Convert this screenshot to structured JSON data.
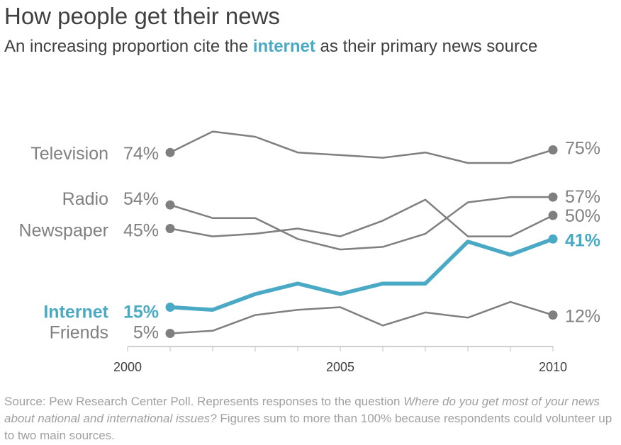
{
  "title": "How people get their news",
  "subtitle": {
    "before": "An increasing proportion cite the ",
    "highlight": "internet",
    "after": " as their primary news source"
  },
  "colors": {
    "accent": "#4aaac6",
    "series": "#7f7f7f",
    "axis": "#bfbfbf",
    "text": "#404040",
    "label": "#808080",
    "source": "#a0a0a0"
  },
  "chart_data": {
    "type": "line",
    "x": [
      2001,
      2002,
      2003,
      2004,
      2005,
      2006,
      2007,
      2008,
      2009,
      2010
    ],
    "xticks": [
      2000,
      2005,
      2010
    ],
    "xlim": [
      2000,
      2010
    ],
    "ylim": [
      0,
      100
    ],
    "grid": false,
    "series": [
      {
        "name": "Television",
        "start_label": "74%",
        "end_label": "75%",
        "highlight": false,
        "values": [
          74,
          82,
          80,
          74,
          73,
          72,
          74,
          70,
          70,
          75
        ]
      },
      {
        "name": "Radio",
        "start_label": "54%",
        "end_label": "57%",
        "highlight": false,
        "values": [
          54,
          49,
          49,
          41,
          37,
          38,
          43,
          55,
          57,
          57
        ]
      },
      {
        "name": "Newspaper",
        "start_label": "45%",
        "end_label": "50%",
        "highlight": false,
        "values": [
          45,
          42,
          43,
          45,
          42,
          48,
          56,
          42,
          42,
          50
        ]
      },
      {
        "name": "Internet",
        "start_label": "15%",
        "end_label": "41%",
        "highlight": true,
        "values": [
          15,
          14,
          20,
          24,
          20,
          24,
          24,
          40,
          35,
          41
        ]
      },
      {
        "name": "Friends",
        "start_label": "5%",
        "end_label": "12%",
        "highlight": false,
        "values": [
          5,
          6,
          12,
          14,
          15,
          8,
          13,
          11,
          17,
          12
        ]
      }
    ]
  },
  "source": {
    "before": "Source: Pew Research Center Poll. Represents responses to the question ",
    "question": "Where do you get most of your news about national and international issues?",
    "after": " Figures sum to more than 100% because respondents could volunteer up to two main sources."
  }
}
